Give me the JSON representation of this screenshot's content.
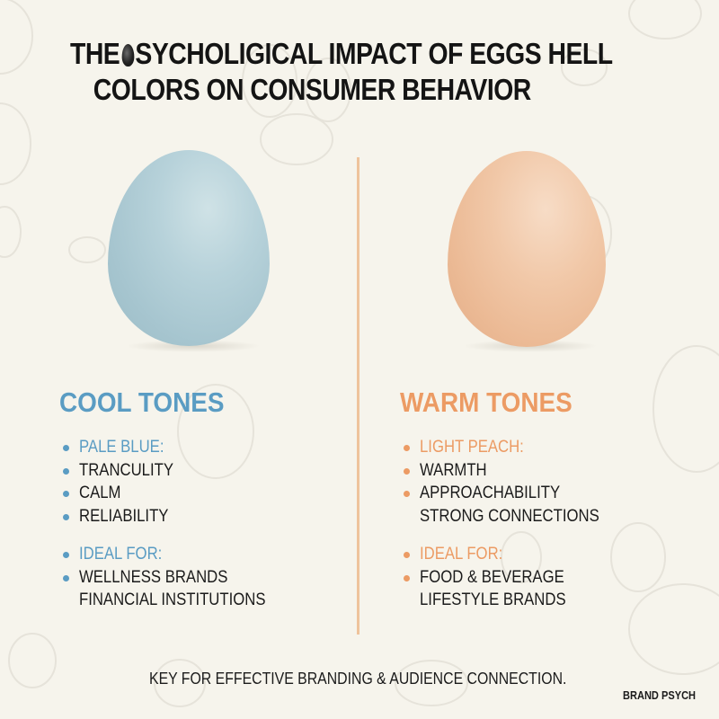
{
  "title": {
    "line1_prefix": "THE",
    "line1_rest": "SYCHOLIGICAL IMPACT OF EGGS HELL",
    "line2": "COLORS ON CONSUMER BEHAVIOR",
    "blot_icon": "egg-blot-icon"
  },
  "colors": {
    "background": "#f6f4ec",
    "cool_accent": "#5a9cc3",
    "warm_accent": "#ec9b64",
    "divider": "#eec39c",
    "text": "#1b1b1b"
  },
  "cool": {
    "image": "pale-blue-egg",
    "heading": "COOL TONES",
    "traits": [
      {
        "label": "PALE BLUE:",
        "accent": true,
        "bullet": true
      },
      {
        "label": "TRANCULITY",
        "accent": false,
        "bullet": true
      },
      {
        "label": "CALM",
        "accent": false,
        "bullet": true
      },
      {
        "label": "RELIABILITY",
        "accent": false,
        "bullet": true
      }
    ],
    "ideal": [
      {
        "label": "IDEAL FOR:",
        "accent": true,
        "bullet": true
      },
      {
        "label": "WELLNESS BRANDS",
        "accent": false,
        "bullet": true
      },
      {
        "label": "FINANCIAL INSTITUTIONS",
        "accent": false,
        "bullet": false
      }
    ]
  },
  "warm": {
    "image": "light-peach-egg",
    "heading": "WARM TONES",
    "traits": [
      {
        "label": "LIGHT PEACH:",
        "accent": true,
        "bullet": true
      },
      {
        "label": "WARMTH",
        "accent": false,
        "bullet": true
      },
      {
        "label": "APPROACHABILITY",
        "accent": false,
        "bullet": true
      },
      {
        "label": "STRONG CONNECTIONS",
        "accent": false,
        "bullet": false
      }
    ],
    "ideal": [
      {
        "label": "IDEAL FOR:",
        "accent": true,
        "bullet": true
      },
      {
        "label": "FOOD & BEVERAGE",
        "accent": false,
        "bullet": true
      },
      {
        "label": "LIFESTYLE BRANDS",
        "accent": false,
        "bullet": false
      }
    ]
  },
  "footer": {
    "tagline": "KEY FOR EFFECTIVE BRANDING & AUDIENCE CONNECTION.",
    "brand": "BRAND PSYCH"
  }
}
